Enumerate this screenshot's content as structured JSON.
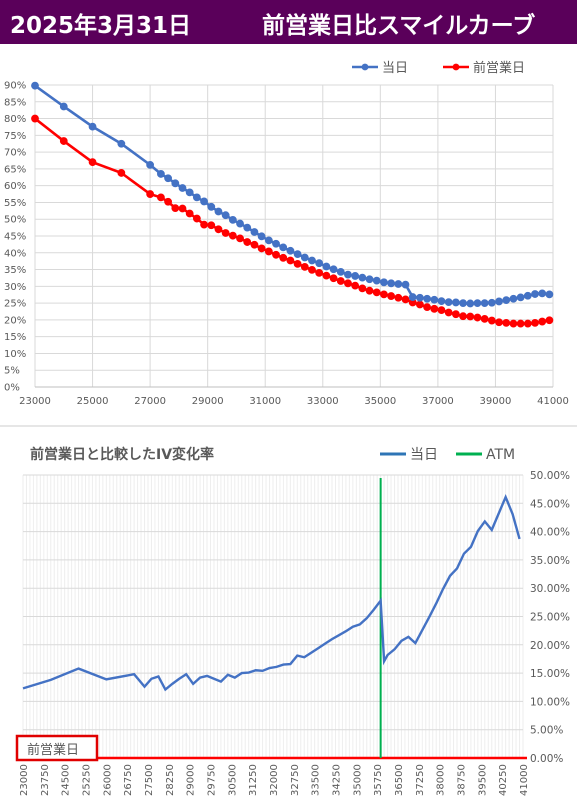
{
  "header": {
    "date": "2025年3月31日",
    "title": "前営業日比スマイルカーブ",
    "bg_color": "#5a005a"
  },
  "chart_data": [
    {
      "type": "line",
      "title": "",
      "xlabel": "",
      "ylabel": "",
      "xlim": [
        23000,
        41000
      ],
      "ylim": [
        0,
        0.9
      ],
      "x_ticks": [
        "23000",
        "25000",
        "27000",
        "29000",
        "31000",
        "33000",
        "35000",
        "37000",
        "39000",
        "41000"
      ],
      "y_ticks": [
        "0%",
        "5%",
        "10%",
        "15%",
        "20%",
        "25%",
        "30%",
        "35%",
        "40%",
        "45%",
        "50%",
        "55%",
        "60%",
        "65%",
        "70%",
        "75%",
        "80%",
        "85%",
        "90%"
      ],
      "grid": true,
      "legend": "top-right",
      "series": [
        {
          "name": "当日",
          "color": "#4472c4",
          "x": [
            23000,
            24000,
            25000,
            26000,
            27000,
            27375,
            27625,
            27875,
            28125,
            28375,
            28625,
            28875,
            29125,
            29375,
            29625,
            29875,
            30125,
            30375,
            30625,
            30875,
            31125,
            31375,
            31625,
            31875,
            32125,
            32375,
            32625,
            32875,
            33125,
            33375,
            33625,
            33875,
            34125,
            34375,
            34625,
            34875,
            35125,
            35375,
            35625,
            35875,
            36125,
            36375,
            36625,
            36875,
            37125,
            37375,
            37625,
            37875,
            38125,
            38375,
            38625,
            38875,
            39125,
            39375,
            39625,
            39875,
            40125,
            40375,
            40625,
            40875
          ],
          "y": [
            0.898,
            0.836,
            0.776,
            0.725,
            0.662,
            0.635,
            0.622,
            0.607,
            0.593,
            0.58,
            0.565,
            0.553,
            0.537,
            0.523,
            0.512,
            0.498,
            0.487,
            0.475,
            0.462,
            0.449,
            0.437,
            0.427,
            0.416,
            0.406,
            0.396,
            0.386,
            0.377,
            0.369,
            0.359,
            0.351,
            0.343,
            0.335,
            0.331,
            0.326,
            0.321,
            0.317,
            0.312,
            0.309,
            0.307,
            0.305,
            0.268,
            0.266,
            0.263,
            0.26,
            0.256,
            0.253,
            0.252,
            0.25,
            0.249,
            0.25,
            0.25,
            0.251,
            0.255,
            0.259,
            0.263,
            0.267,
            0.272,
            0.277,
            0.279,
            0.276
          ]
        },
        {
          "name": "前営業日",
          "color": "#ff0000",
          "x": [
            23000,
            24000,
            25000,
            26000,
            27000,
            27375,
            27625,
            27875,
            28125,
            28375,
            28625,
            28875,
            29125,
            29375,
            29625,
            29875,
            30125,
            30375,
            30625,
            30875,
            31125,
            31375,
            31625,
            31875,
            32125,
            32375,
            32625,
            32875,
            33125,
            33375,
            33625,
            33875,
            34125,
            34375,
            34625,
            34875,
            35125,
            35375,
            35625,
            35875,
            36125,
            36375,
            36625,
            36875,
            37125,
            37375,
            37625,
            37875,
            38125,
            38375,
            38625,
            38875,
            39125,
            39375,
            39625,
            39875,
            40125,
            40375,
            40625,
            40875
          ],
          "y": [
            0.8,
            0.733,
            0.67,
            0.638,
            0.575,
            0.565,
            0.552,
            0.533,
            0.532,
            0.517,
            0.502,
            0.484,
            0.482,
            0.47,
            0.459,
            0.451,
            0.443,
            0.432,
            0.424,
            0.413,
            0.404,
            0.394,
            0.385,
            0.377,
            0.367,
            0.358,
            0.349,
            0.34,
            0.332,
            0.324,
            0.316,
            0.309,
            0.302,
            0.294,
            0.287,
            0.282,
            0.276,
            0.271,
            0.266,
            0.261,
            0.252,
            0.246,
            0.238,
            0.233,
            0.229,
            0.222,
            0.217,
            0.211,
            0.21,
            0.207,
            0.203,
            0.198,
            0.193,
            0.191,
            0.189,
            0.189,
            0.189,
            0.191,
            0.195,
            0.199
          ]
        }
      ]
    },
    {
      "type": "line",
      "title": "前営業日と比較したIV変化率",
      "xlabel": "",
      "ylabel": "",
      "ylim": [
        0,
        0.5
      ],
      "categories": [
        "23000",
        "23125",
        "23250",
        "23375",
        "23500",
        "23625",
        "23750",
        "23875",
        "24000",
        "24125",
        "24250",
        "24375",
        "24500",
        "24625",
        "24750",
        "24875",
        "25000",
        "25125",
        "25250",
        "25375",
        "25500",
        "25625",
        "25750",
        "25875",
        "26000",
        "26125",
        "26250",
        "26375",
        "26500",
        "26625",
        "26750",
        "26875",
        "27000",
        "27125",
        "27250",
        "27375",
        "27500",
        "27625",
        "27750",
        "27875",
        "28000",
        "28125",
        "28250",
        "28375",
        "28500",
        "28625",
        "28750",
        "28875",
        "29000",
        "29125",
        "29250",
        "29375",
        "29500",
        "29625",
        "29750",
        "29875",
        "30000",
        "30125",
        "30250",
        "30375",
        "30500",
        "30625",
        "30750",
        "30875",
        "31000",
        "31125",
        "31250",
        "31375",
        "31500",
        "31625",
        "31750",
        "31875",
        "32000",
        "32125",
        "32250",
        "32375",
        "32500",
        "32625",
        "32750",
        "32875",
        "33000",
        "33125",
        "33250",
        "33375",
        "33500",
        "33625",
        "33750",
        "33875",
        "34000",
        "34125",
        "34250",
        "34375",
        "34500",
        "34625",
        "34750",
        "34875",
        "35000",
        "35125",
        "35250",
        "35375",
        "35500",
        "35625",
        "35750",
        "35875",
        "36000",
        "36125",
        "36250",
        "36375",
        "36500",
        "36625",
        "36750",
        "36875",
        "37000",
        "37125",
        "37250",
        "37375",
        "37500",
        "37625",
        "37750",
        "37875",
        "38000",
        "38125",
        "38250",
        "38375",
        "38500",
        "38625",
        "38750",
        "38875",
        "39000",
        "39125",
        "39250",
        "39375",
        "39500",
        "39625",
        "39750",
        "39875",
        "40000",
        "40125",
        "40250",
        "40375",
        "40500",
        "40625",
        "40750",
        "40875",
        "41000"
      ],
      "x_tick_labels": [
        "23000",
        "23750",
        "24500",
        "25250",
        "26000",
        "26750",
        "27500",
        "28250",
        "29000",
        "29750",
        "30500",
        "31250",
        "32000",
        "32750",
        "33500",
        "34250",
        "35000",
        "35750",
        "36500",
        "37250",
        "38000",
        "38750",
        "39500",
        "40250",
        "41000"
      ],
      "y_ticks": [
        "0.00%",
        "5.00%",
        "10.00%",
        "15.00%",
        "20.00%",
        "25.00%",
        "30.00%",
        "35.00%",
        "40.00%",
        "45.00%",
        "50.00%"
      ],
      "grid": true,
      "legend": "top-right",
      "series": [
        {
          "name": "当日",
          "color": "#4472c4",
          "points": [
            [
              23000,
              0.123
            ],
            [
              24000,
              0.138
            ],
            [
              25000,
              0.158
            ],
            [
              26000,
              0.139
            ],
            [
              27000,
              0.148
            ],
            [
              27375,
              0.126
            ],
            [
              27625,
              0.14
            ],
            [
              27875,
              0.144
            ],
            [
              28125,
              0.121
            ],
            [
              28375,
              0.131
            ],
            [
              28625,
              0.14
            ],
            [
              28875,
              0.148
            ],
            [
              29125,
              0.131
            ],
            [
              29375,
              0.142
            ],
            [
              29625,
              0.145
            ],
            [
              29875,
              0.14
            ],
            [
              30125,
              0.135
            ],
            [
              30375,
              0.147
            ],
            [
              30625,
              0.142
            ],
            [
              30875,
              0.15
            ],
            [
              31125,
              0.151
            ],
            [
              31375,
              0.155
            ],
            [
              31625,
              0.154
            ],
            [
              31875,
              0.159
            ],
            [
              32125,
              0.161
            ],
            [
              32375,
              0.165
            ],
            [
              32625,
              0.166
            ],
            [
              32875,
              0.181
            ],
            [
              33125,
              0.178
            ],
            [
              33375,
              0.186
            ],
            [
              33625,
              0.194
            ],
            [
              33875,
              0.202
            ],
            [
              34125,
              0.21
            ],
            [
              34375,
              0.217
            ],
            [
              34625,
              0.224
            ],
            [
              34875,
              0.232
            ],
            [
              35125,
              0.236
            ],
            [
              35375,
              0.247
            ],
            [
              35625,
              0.262
            ],
            [
              35875,
              0.278
            ],
            [
              36000,
              0.171
            ],
            [
              36125,
              0.182
            ],
            [
              36375,
              0.192
            ],
            [
              36625,
              0.207
            ],
            [
              36875,
              0.214
            ],
            [
              37125,
              0.203
            ],
            [
              37375,
              0.226
            ],
            [
              37625,
              0.249
            ],
            [
              37875,
              0.273
            ],
            [
              38125,
              0.299
            ],
            [
              38375,
              0.322
            ],
            [
              38625,
              0.335
            ],
            [
              38875,
              0.361
            ],
            [
              39125,
              0.373
            ],
            [
              39375,
              0.401
            ],
            [
              39625,
              0.418
            ],
            [
              39875,
              0.403
            ],
            [
              40125,
              0.432
            ],
            [
              40375,
              0.461
            ],
            [
              40625,
              0.431
            ],
            [
              40875,
              0.387
            ]
          ]
        },
        {
          "name": "ATM",
          "color": "#00b050",
          "x": 35875
        }
      ],
      "baseline_label": "前営業日",
      "baseline_color": "#ff0000"
    }
  ]
}
